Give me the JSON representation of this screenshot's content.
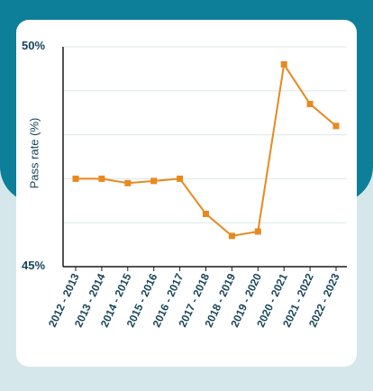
{
  "chart_data": {
    "type": "line",
    "categories": [
      "2012 - 2013",
      "2013 - 2014",
      "2014 - 2015",
      "2015 - 2016",
      "2016 - 2017",
      "2017 - 2018",
      "2018 - 2019",
      "2019 - 2020",
      "2020 - 2021",
      "2021 - 2022",
      "2022 - 2023"
    ],
    "values": [
      47.0,
      47.0,
      46.9,
      46.95,
      47.0,
      46.2,
      45.7,
      45.8,
      49.6,
      48.7,
      48.2
    ],
    "ylabel": "Pass rate (%)",
    "yticks": [
      "50%",
      "45%"
    ],
    "ylim": [
      45,
      50
    ],
    "grid": true,
    "line_color": "#e8891f"
  }
}
